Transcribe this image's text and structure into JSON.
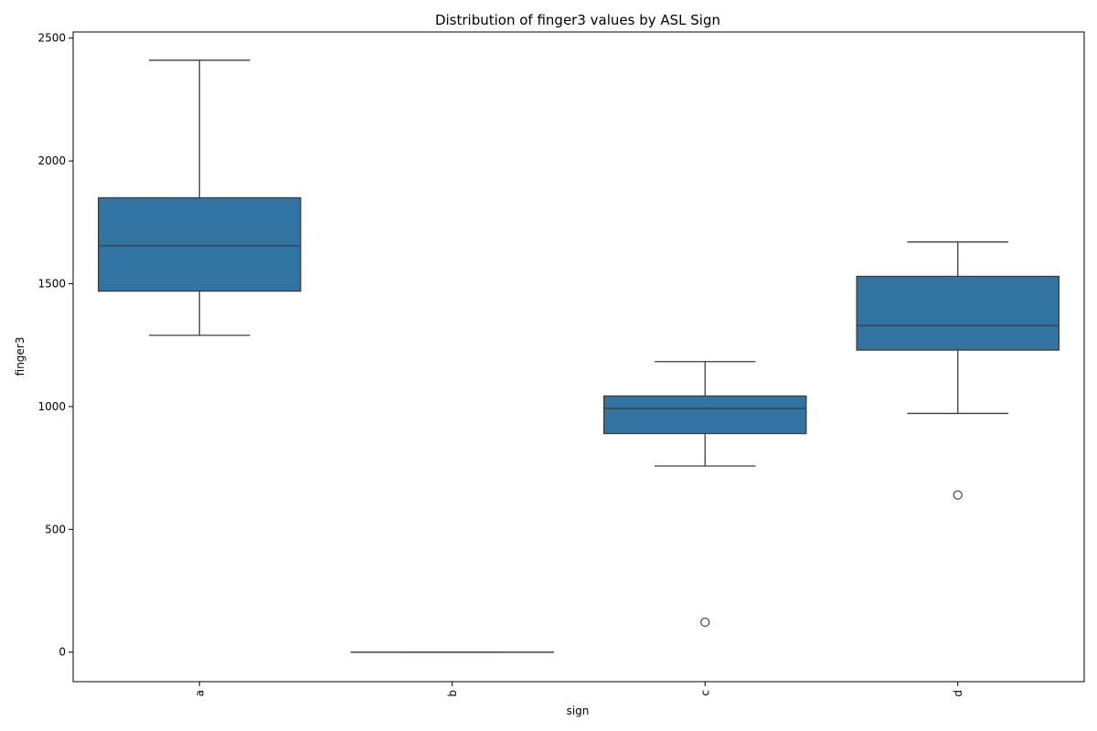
{
  "chart_data": {
    "type": "box",
    "title": "Distribution of finger3 values by ASL Sign",
    "xlabel": "sign",
    "ylabel": "finger3",
    "categories": [
      "a",
      "b",
      "c",
      "d"
    ],
    "ylim": [
      -120,
      2525
    ],
    "yticks": [
      0,
      500,
      1000,
      1500,
      2000,
      2500
    ],
    "grid": false,
    "box_color": "#3274a1",
    "line_color": "#3d3d3d",
    "boxes": [
      {
        "category": "a",
        "whisker_low": 1290,
        "q1": 1470,
        "median": 1655,
        "q3": 1850,
        "whisker_high": 2410,
        "outliers": []
      },
      {
        "category": "b",
        "whisker_low": 0,
        "q1": 0,
        "median": 0,
        "q3": 0,
        "whisker_high": 0,
        "outliers": []
      },
      {
        "category": "c",
        "whisker_low": 758,
        "q1": 890,
        "median": 993,
        "q3": 1043,
        "whisker_high": 1183,
        "outliers": [
          122
        ]
      },
      {
        "category": "d",
        "whisker_low": 972,
        "q1": 1230,
        "median": 1330,
        "q3": 1530,
        "whisker_high": 1670,
        "outliers": [
          640
        ]
      }
    ]
  }
}
